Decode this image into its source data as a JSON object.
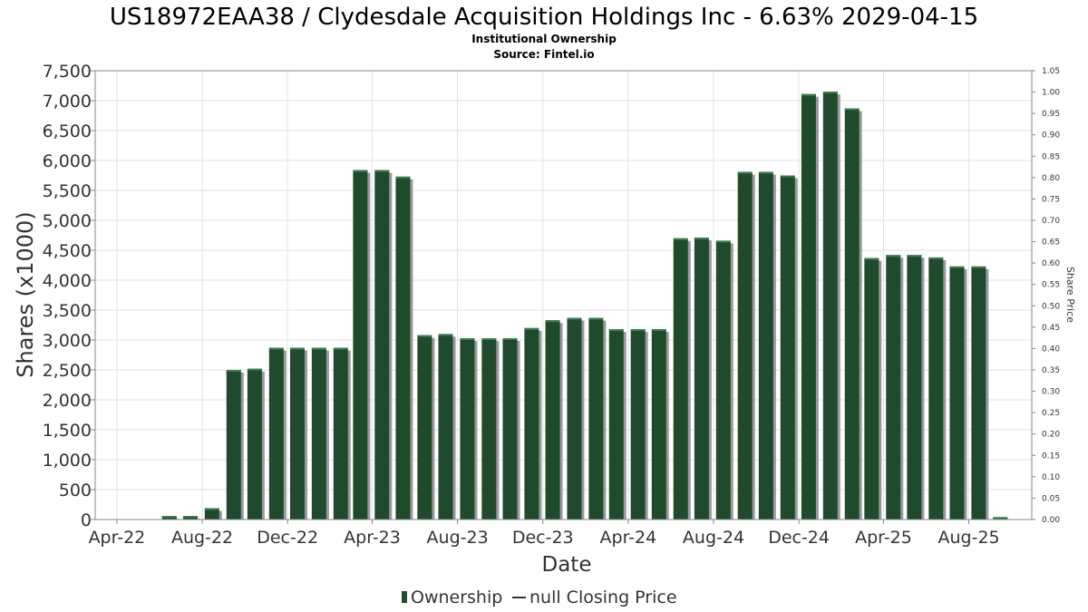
{
  "chart_data": {
    "type": "bar",
    "title": "US18972EAA38 / Clydesdale Acquisition Holdings Inc - 6.63% 2029-04-15",
    "subtitle": "Institutional Ownership",
    "source": "Source: Fintel.io",
    "xlabel": "Date",
    "ylabel": "Shares (x1000)",
    "y2label": "Share Price",
    "ylim": [
      0,
      7500
    ],
    "y2lim": [
      0,
      1.05
    ],
    "yticks": [
      "0",
      "500",
      "1,000",
      "1,500",
      "2,000",
      "2,500",
      "3,000",
      "3,500",
      "4,000",
      "4,500",
      "5,000",
      "5,500",
      "6,000",
      "6,500",
      "7,000",
      "7,500"
    ],
    "y2ticks": [
      "0.00",
      "0.05",
      "0.10",
      "0.15",
      "0.20",
      "0.25",
      "0.30",
      "0.35",
      "0.40",
      "0.45",
      "0.50",
      "0.55",
      "0.60",
      "0.65",
      "0.70",
      "0.75",
      "0.80",
      "0.85",
      "0.90",
      "0.95",
      "1.00",
      "1.05"
    ],
    "xticks": [
      {
        "label": "Apr-22",
        "date": "2022-04-01"
      },
      {
        "label": "Aug-22",
        "date": "2022-08-01"
      },
      {
        "label": "Dec-22",
        "date": "2022-12-01"
      },
      {
        "label": "Apr-23",
        "date": "2023-04-01"
      },
      {
        "label": "Aug-23",
        "date": "2023-08-01"
      },
      {
        "label": "Dec-23",
        "date": "2023-12-01"
      },
      {
        "label": "Apr-24",
        "date": "2024-04-01"
      },
      {
        "label": "Aug-24",
        "date": "2024-08-01"
      },
      {
        "label": "Dec-24",
        "date": "2024-12-01"
      },
      {
        "label": "Apr-25",
        "date": "2025-04-01"
      },
      {
        "label": "Aug-25",
        "date": "2025-08-01"
      }
    ],
    "x_range": [
      "2022-03-01",
      "2025-10-30"
    ],
    "grid": true,
    "legend_position": "bottom",
    "series": [
      {
        "name": "Ownership",
        "color": "#1f4a2c",
        "points": [
          {
            "date": "2022-06-15",
            "value": 60
          },
          {
            "date": "2022-07-15",
            "value": 60
          },
          {
            "date": "2022-08-15",
            "value": 190
          },
          {
            "date": "2022-09-15",
            "value": 2500
          },
          {
            "date": "2022-10-15",
            "value": 2520
          },
          {
            "date": "2022-11-15",
            "value": 2870
          },
          {
            "date": "2022-12-15",
            "value": 2870
          },
          {
            "date": "2023-01-15",
            "value": 2870
          },
          {
            "date": "2023-02-15",
            "value": 2870
          },
          {
            "date": "2023-03-15",
            "value": 5840
          },
          {
            "date": "2023-04-15",
            "value": 5840
          },
          {
            "date": "2023-05-15",
            "value": 5730
          },
          {
            "date": "2023-06-15",
            "value": 3080
          },
          {
            "date": "2023-07-15",
            "value": 3100
          },
          {
            "date": "2023-08-15",
            "value": 3030
          },
          {
            "date": "2023-09-15",
            "value": 3030
          },
          {
            "date": "2023-10-15",
            "value": 3030
          },
          {
            "date": "2023-11-15",
            "value": 3200
          },
          {
            "date": "2023-12-15",
            "value": 3330
          },
          {
            "date": "2024-01-15",
            "value": 3370
          },
          {
            "date": "2024-02-15",
            "value": 3370
          },
          {
            "date": "2024-03-15",
            "value": 3180
          },
          {
            "date": "2024-04-15",
            "value": 3180
          },
          {
            "date": "2024-05-15",
            "value": 3180
          },
          {
            "date": "2024-06-15",
            "value": 4700
          },
          {
            "date": "2024-07-15",
            "value": 4710
          },
          {
            "date": "2024-08-15",
            "value": 4660
          },
          {
            "date": "2024-09-15",
            "value": 5810
          },
          {
            "date": "2024-10-15",
            "value": 5810
          },
          {
            "date": "2024-11-15",
            "value": 5750
          },
          {
            "date": "2024-12-15",
            "value": 7110
          },
          {
            "date": "2025-01-15",
            "value": 7150
          },
          {
            "date": "2025-02-15",
            "value": 6870
          },
          {
            "date": "2025-03-15",
            "value": 4370
          },
          {
            "date": "2025-04-15",
            "value": 4420
          },
          {
            "date": "2025-05-15",
            "value": 4420
          },
          {
            "date": "2025-06-15",
            "value": 4380
          },
          {
            "date": "2025-07-15",
            "value": 4230
          },
          {
            "date": "2025-08-15",
            "value": 4230
          },
          {
            "date": "2025-09-15",
            "value": 40
          }
        ]
      },
      {
        "name": "null Closing Price",
        "color": "#333333",
        "points": []
      }
    ]
  },
  "legend": {
    "ownership_label": "Ownership",
    "price_label": "null Closing Price"
  }
}
